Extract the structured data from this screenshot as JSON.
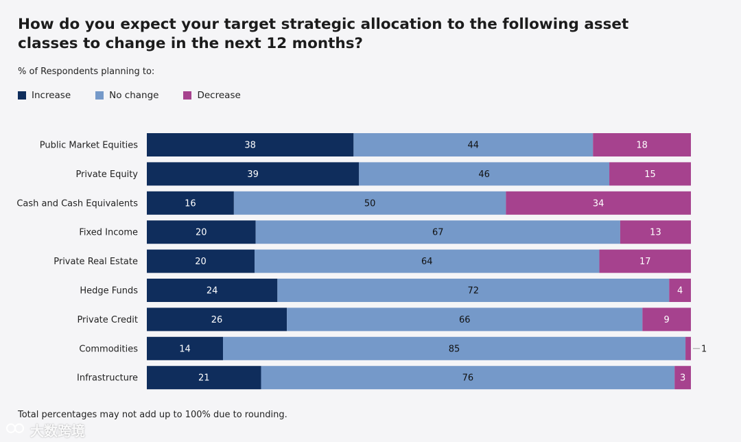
{
  "title": "How do you expect your target strategic allocation to the following asset classes to change in the next 12 months?",
  "subtitle": "% of Respondents planning to:",
  "footnote": "Total percentages may not add up to 100% due to rounding.",
  "watermark": "大数跨境",
  "colors": {
    "increase": "#0f2d5c",
    "no_change": "#7599c9",
    "decrease": "#a6428e"
  },
  "chart_data": {
    "type": "bar",
    "orientation": "horizontal",
    "stacked": true,
    "title": "How do you expect your target strategic allocation to the following asset classes to change in the next 12 months?",
    "xlabel": "",
    "ylabel": "",
    "xlim": [
      0,
      100
    ],
    "grid": false,
    "legend_position": "top-left",
    "categories": [
      "Public Market Equities",
      "Private Equity",
      "Cash and Cash Equivalents",
      "Fixed Income",
      "Private Real Estate",
      "Hedge Funds",
      "Private Credit",
      "Commodities",
      "Infrastructure"
    ],
    "series": [
      {
        "name": "Increase",
        "key": "increase",
        "values": [
          38,
          39,
          16,
          20,
          20,
          24,
          26,
          14,
          21
        ]
      },
      {
        "name": "No change",
        "key": "no_change",
        "values": [
          44,
          46,
          50,
          67,
          64,
          72,
          66,
          85,
          76
        ]
      },
      {
        "name": "Decrease",
        "key": "decrease",
        "values": [
          18,
          15,
          34,
          13,
          17,
          4,
          9,
          1,
          3
        ]
      }
    ]
  }
}
